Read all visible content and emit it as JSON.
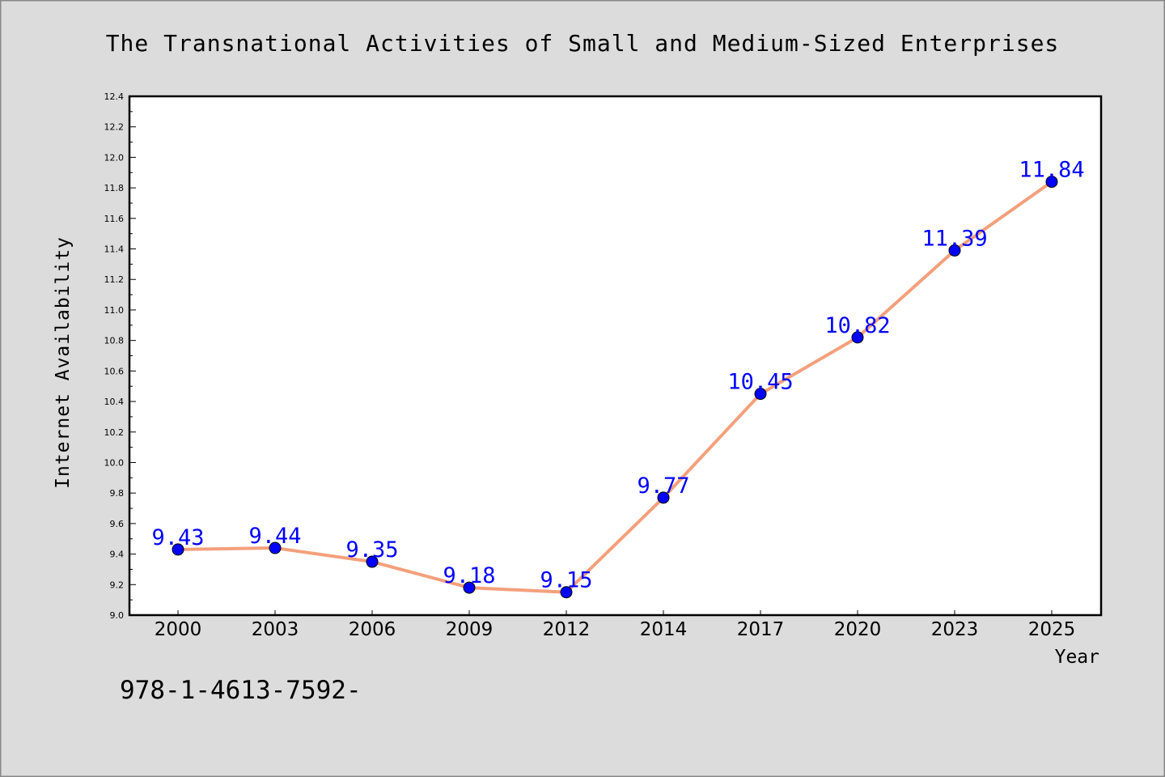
{
  "chart_data": {
    "type": "line",
    "title": "The Transnational Activities of Small and Medium-Sized Enterprises",
    "xlabel": "Year",
    "ylabel": "Internet Availability",
    "categories": [
      "2000",
      "2003",
      "2006",
      "2009",
      "2012",
      "2014",
      "2017",
      "2020",
      "2023",
      "2025"
    ],
    "series": [
      {
        "values": [
          9.43,
          9.44,
          9.35,
          9.18,
          9.15,
          9.77,
          10.45,
          10.82,
          11.39,
          11.84
        ]
      }
    ],
    "data_labels": [
      "9.43",
      "9.44",
      "9.35",
      "9.18",
      "9.15",
      "9.77",
      "10.45",
      "10.82",
      "11.39",
      "11.84"
    ],
    "ylim": [
      9.0,
      12.4
    ],
    "yticks": [
      "9.0",
      "9.2",
      "9.4",
      "9.6",
      "9.8",
      "10.0",
      "10.2",
      "10.4",
      "10.6",
      "10.8",
      "11.0",
      "11.2",
      "11.4",
      "11.6",
      "11.8",
      "12.0",
      "12.2",
      "12.4"
    ],
    "grid": false,
    "legend": "none"
  },
  "colors": {
    "background": "#dcdcdc",
    "plot_background": "#ffffff",
    "line": "#f4a07c",
    "marker": "#0000ff",
    "data_label": "#0000ff"
  },
  "footer_text": "978-1-4613-7592-"
}
